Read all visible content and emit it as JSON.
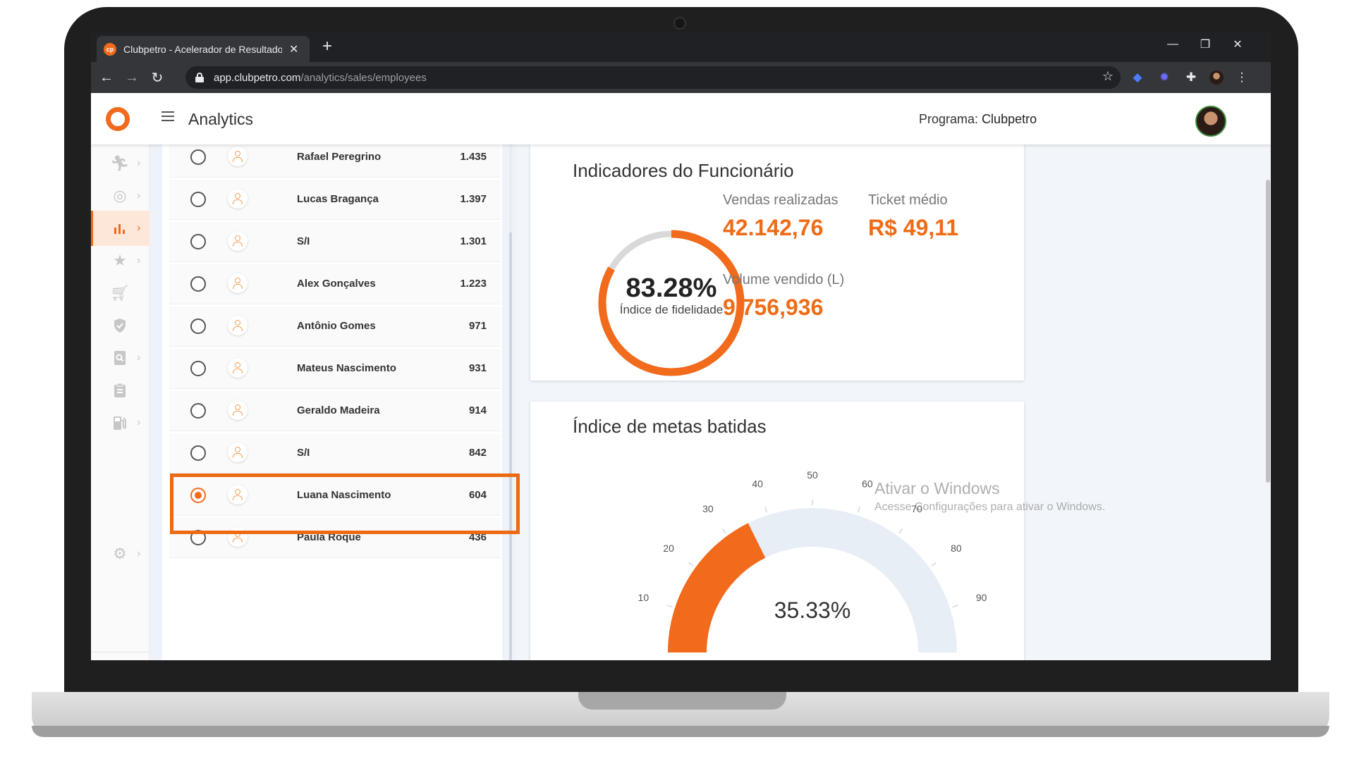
{
  "browser": {
    "tab_title": "Clubpetro - Acelerador de Resultados",
    "tab_favicon_text": "cp",
    "url_host": "app.clubpetro.com",
    "url_path": "/analytics/sales/employees"
  },
  "header": {
    "title": "Analytics",
    "program_label": "Programa:",
    "program_value": "Clubpetro"
  },
  "sidebar": {
    "items": [
      {
        "icon": "person-running-icon",
        "active": false
      },
      {
        "icon": "target-icon",
        "active": false
      },
      {
        "icon": "bar-chart-icon",
        "active": true
      },
      {
        "icon": "star-icon",
        "active": false
      },
      {
        "icon": "cart-icon",
        "active": false
      },
      {
        "icon": "shield-check-icon",
        "active": false
      },
      {
        "icon": "search-document-icon",
        "active": false
      },
      {
        "icon": "clipboard-icon",
        "active": false
      },
      {
        "icon": "fuel-pump-icon",
        "active": false
      },
      {
        "icon": "gear-icon",
        "active": false
      }
    ]
  },
  "employees": [
    {
      "name": "Rafael Peregrino",
      "value": "1.435",
      "selected": false
    },
    {
      "name": "Lucas Bragança",
      "value": "1.397",
      "selected": false
    },
    {
      "name": "S/I",
      "value": "1.301",
      "selected": false
    },
    {
      "name": "Alex Gonçalves",
      "value": "1.223",
      "selected": false
    },
    {
      "name": "Antônio Gomes",
      "value": "971",
      "selected": false
    },
    {
      "name": "Mateus Nascimento",
      "value": "931",
      "selected": false
    },
    {
      "name": "Geraldo Madeira",
      "value": "914",
      "selected": false
    },
    {
      "name": "S/I",
      "value": "842",
      "selected": false
    },
    {
      "name": "Luana Nascimento",
      "value": "604",
      "selected": true
    },
    {
      "name": "Paula Roque",
      "value": "436",
      "selected": false
    }
  ],
  "indicators": {
    "title": "Indicadores do Funcionário",
    "loyalty_percent": "83.28%",
    "loyalty_fraction": 0.8328,
    "loyalty_label": "Índice de fidelidade",
    "sales_label": "Vendas realizadas",
    "sales_value": "42.142,76",
    "ticket_label": "Ticket médio",
    "ticket_value": "R$ 49,11",
    "volume_label": "Volume vendido (L)",
    "volume_value": "9.756,936"
  },
  "goals": {
    "title": "Índice de metas batidas",
    "value_text": "35.33%",
    "value": 35.33,
    "scale_max": 100,
    "ticks": [
      "10",
      "20",
      "30",
      "40",
      "50",
      "60",
      "70",
      "80",
      "90"
    ]
  },
  "watermark": {
    "line1": "Ativar o Windows",
    "line2": "Acesse Configurações para ativar o Windows."
  },
  "colors": {
    "accent": "#f26a1b",
    "donut_track": "#d9d9d9",
    "gauge_track": "#e8eef6"
  }
}
